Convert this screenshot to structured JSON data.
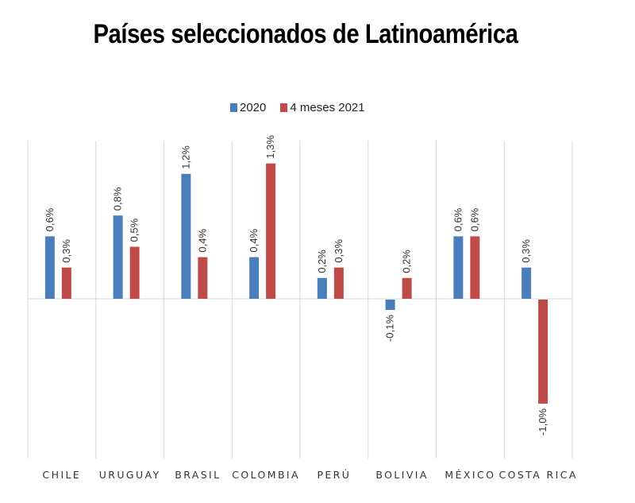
{
  "chart_data": {
    "type": "bar",
    "title": "Países seleccionados de Latinoamérica",
    "xlabel": "",
    "ylabel": "",
    "ylim": [
      -1.5,
      1.5
    ],
    "grid": "vertical category separators",
    "legend_position": "top-center",
    "categories": [
      "CHILE",
      "URUGUAY",
      "BRASIL",
      "COLOMBIA",
      "PERÚ",
      "BOLIVIA",
      "MÉXICO",
      "COSTA RICA"
    ],
    "series": [
      {
        "name": "2020",
        "color": "#4a7ebb",
        "values": [
          0.6,
          0.8,
          1.2,
          0.4,
          0.2,
          -0.1,
          0.6,
          0.3
        ],
        "labels": [
          "0,6%",
          "0,8%",
          "1,2%",
          "0,4%",
          "0,2%",
          "-0,1%",
          "0,6%",
          "0,3%"
        ]
      },
      {
        "name": "4 meses 2021",
        "color": "#be4b48",
        "values": [
          0.3,
          0.5,
          0.4,
          1.3,
          0.3,
          0.2,
          0.6,
          -1.0
        ],
        "labels": [
          "0,3%",
          "0,5%",
          "0,4%",
          "1,3%",
          "0,3%",
          "0,2%",
          "0,6%",
          "-1,0%"
        ]
      }
    ]
  }
}
